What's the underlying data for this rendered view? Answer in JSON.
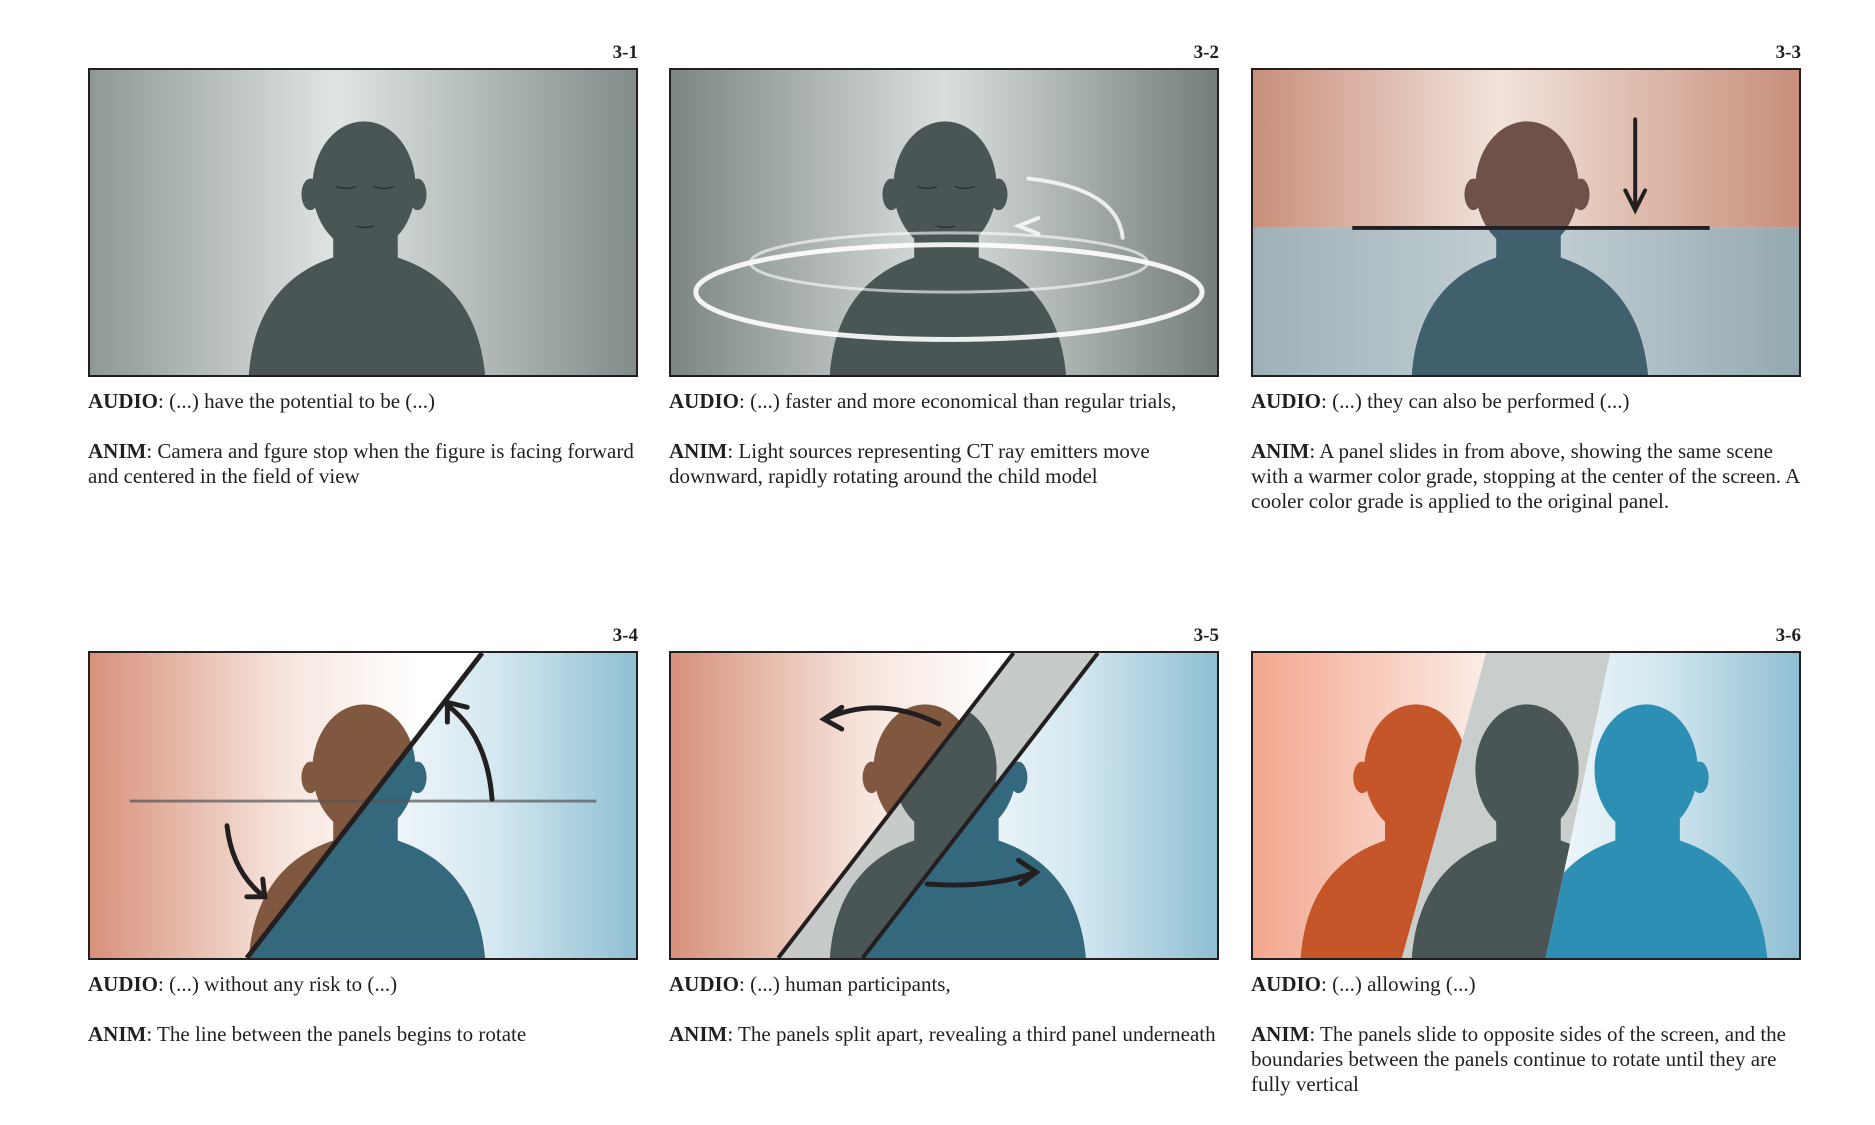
{
  "frames": [
    {
      "number": "3-1",
      "audio_label": "AUDIO",
      "audio_sep": ":  ",
      "audio": "(...) have the potential to be (...)",
      "anim_label": "ANIM",
      "anim_sep": ": ",
      "anim": "Camera and fgure stop when the figure is facing forward and centered in the field of view"
    },
    {
      "number": "3-2",
      "audio_label": "AUDIO",
      "audio_sep": ":  ",
      "audio": "(...) faster and more economical than regular trials,",
      "anim_label": "ANIM",
      "anim_sep": ": ",
      "anim": "Light sources representing CT ray emitters move downward, rapidly rotating around the child model"
    },
    {
      "number": "3-3",
      "audio_label": "AUDIO",
      "audio_sep": ":  ",
      "audio": "(...) they can also be performed (...)",
      "anim_label": "ANIM",
      "anim_sep": ": ",
      "anim": "A panel slides in from above, showing the same scene with a warmer color grade, stopping at the center of the screen. A cooler color grade is applied to the original panel."
    },
    {
      "number": "3-4",
      "audio_label": "AUDIO",
      "audio_sep": ":  ",
      "audio": "(...) without any risk to (...)",
      "anim_label": "ANIM",
      "anim_sep": ": ",
      "anim": "The line between the panels begins to rotate"
    },
    {
      "number": "3-5",
      "audio_label": "AUDIO",
      "audio_sep": ": ",
      "audio": "(...) human participants,",
      "anim_label": "ANIM",
      "anim_sep": ": ",
      "anim": "The panels split apart, revealing a third panel underneath"
    },
    {
      "number": "3-6",
      "audio_label": "AUDIO",
      "audio_sep": ":  ",
      "audio": "(...) allowing (...)",
      "anim_label": "ANIM",
      "anim_sep": ": ",
      "anim": "The panels slide to opposite sides of the screen, and the boundaries between the panels continue to rotate until they are fully vertical"
    }
  ],
  "colors": {
    "ink": "#231f20",
    "neutral_figure": "#4a5556",
    "warm_figure": "#80573f",
    "warm_figure_strong": "#c4562a",
    "cool_figure": "#34687c",
    "cool_figure_strong": "#2e8fb4",
    "warm_bg": "#e2a48c",
    "cool_bg": "#8fbfd2"
  }
}
